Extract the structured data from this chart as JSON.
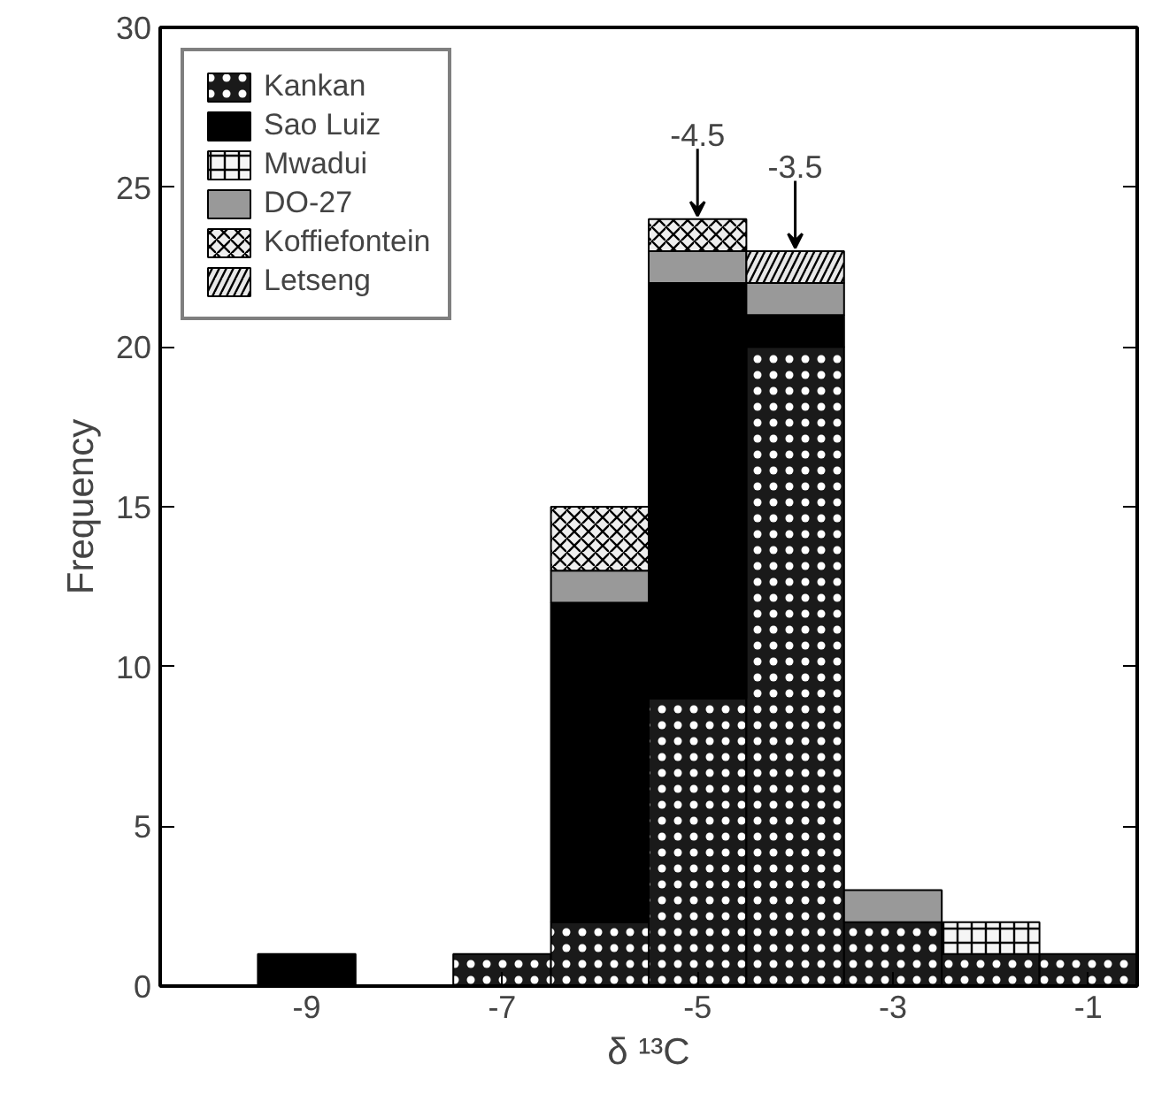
{
  "chart_data": {
    "type": "bar",
    "xlabel": "δ ¹³C",
    "ylabel": "Frequency",
    "stacked": true,
    "x": [
      -9,
      -8,
      -7,
      -6,
      -5,
      -4,
      -3,
      -2,
      -1
    ],
    "series": [
      {
        "name": "Kankan",
        "color": "#1a1a1a",
        "values": [
          0,
          0,
          1,
          2,
          9,
          20,
          2,
          1,
          1
        ]
      },
      {
        "name": "Sao Luiz",
        "color": "#000000",
        "values": [
          1,
          0,
          0,
          10,
          13,
          1,
          0,
          0,
          0
        ]
      },
      {
        "name": "Mwadui",
        "color": "#f5f5f5",
        "values": [
          0,
          0,
          0,
          0,
          0,
          0,
          0,
          1,
          0
        ]
      },
      {
        "name": "DO-27",
        "color": "#999999",
        "values": [
          0,
          0,
          0,
          1,
          1,
          1,
          1,
          0,
          0
        ]
      },
      {
        "name": "Koffiefontein",
        "color": "#eeeeee",
        "values": [
          0,
          0,
          0,
          2,
          1,
          0,
          0,
          0,
          0
        ]
      },
      {
        "name": "Letseng",
        "color": "#e8e8e8",
        "values": [
          0,
          0,
          0,
          0,
          0,
          1,
          0,
          0,
          0
        ]
      }
    ],
    "xlim": [
      -10.5,
      -0.5
    ],
    "xticks": [
      -9,
      -7,
      -5,
      -3,
      -1
    ],
    "ylim": [
      0,
      30
    ],
    "yticks": [
      0,
      5,
      10,
      15,
      20,
      25,
      30
    ],
    "annotations": [
      {
        "text": "-4.5",
        "x": -5,
        "y": 24
      },
      {
        "text": "-3.5",
        "x": -4,
        "y": 23
      }
    ],
    "legend": "top left",
    "grid": false
  }
}
